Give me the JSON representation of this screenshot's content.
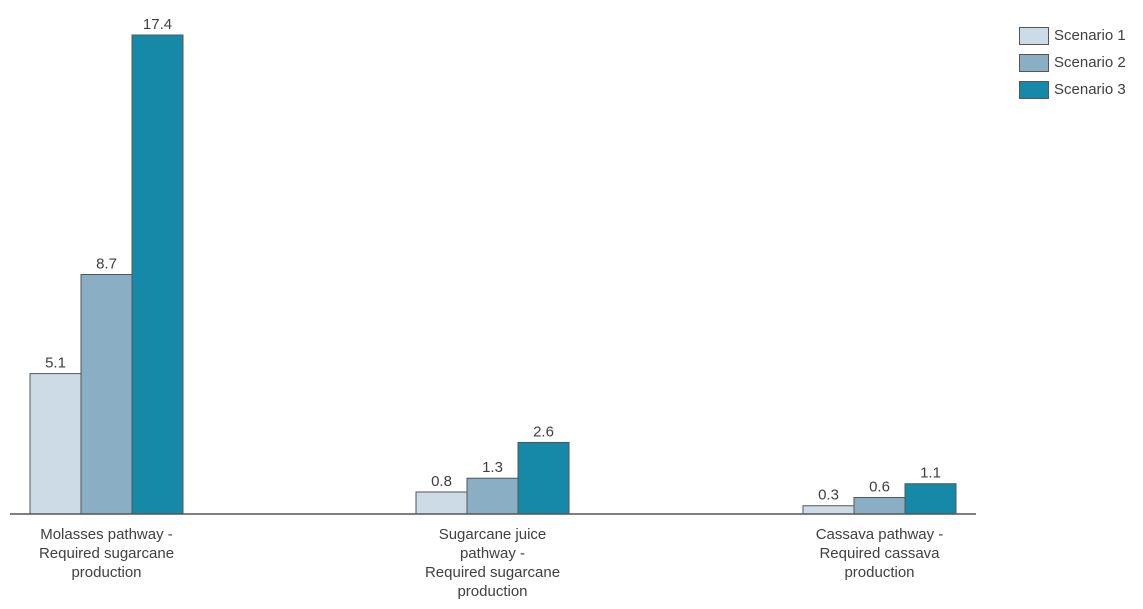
{
  "chart_data": {
    "type": "bar",
    "categories": [
      [
        "Molasses pathway -",
        "Required sugarcane",
        "production"
      ],
      [
        "Sugarcane juice",
        "pathway -",
        "Required sugarcane",
        "production"
      ],
      [
        "Cassava pathway -",
        "Required cassava",
        "production"
      ]
    ],
    "series": [
      {
        "name": "Scenario 1",
        "values": [
          5.1,
          0.8,
          0.3
        ],
        "color": "#cddbe6"
      },
      {
        "name": "Scenario 2",
        "values": [
          8.7,
          1.3,
          0.6
        ],
        "color": "#8aaec4"
      },
      {
        "name": "Scenario 3",
        "values": [
          17.4,
          2.6,
          1.1
        ],
        "color": "#1789a8"
      }
    ],
    "data_labels": [
      [
        "5.1",
        "0.8",
        "0.3"
      ],
      [
        "8.7",
        "1.3",
        "0.6"
      ],
      [
        "17.4",
        "2.6",
        "1.1"
      ]
    ],
    "ylim": [
      0,
      17.4
    ],
    "grid": false,
    "legend_position": "top-right",
    "title": "",
    "xlabel": "",
    "ylabel": ""
  }
}
